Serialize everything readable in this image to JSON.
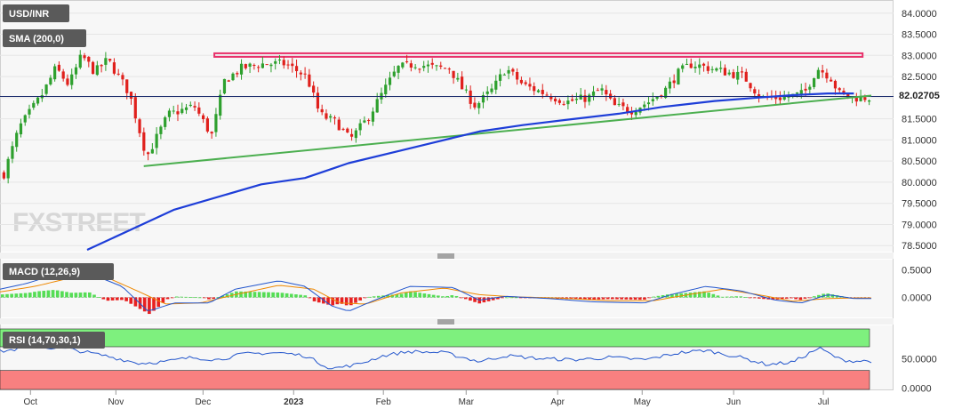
{
  "header": {
    "symbol": "USD/INR",
    "indicators": [
      "SMA (200,0)",
      "MACD (12,26,9)",
      "RSI (14,70,30,1)"
    ]
  },
  "watermark": {
    "prefix": "FX",
    "suffix": "STREET"
  },
  "colors": {
    "bull": "#2ea02e",
    "bear": "#e0201c",
    "sma": "#1e3ed8",
    "trendline": "#4caf50",
    "resistance": "#e8306a",
    "price_line": "#1a2a6c",
    "macd_line": "#2255cc",
    "signal_line": "#ee8800",
    "rsi_line": "#2255cc",
    "overbought_zone": "#7ef07e",
    "oversold_zone": "#f88080"
  },
  "x_axis": {
    "labels": [
      "Oct",
      "Nov",
      "Dec",
      "2023",
      "Feb",
      "Mar",
      "Apr",
      "May",
      "Jun",
      "Jul"
    ]
  },
  "chart_data": [
    {
      "type": "candlestick",
      "title": "USD/INR",
      "y_axis": {
        "labels": [
          "84.0000",
          "83.5000",
          "83.0000",
          "82.5000",
          "82.0000",
          "81.5000",
          "81.0000",
          "80.5000",
          "80.0000",
          "79.5000",
          "79.0000",
          "78.5000"
        ],
        "ylim": [
          78.4,
          84.1
        ]
      },
      "last_price": "82.02705",
      "price_anchors": [
        {
          "x": 0,
          "y": 80.2
        },
        {
          "x": 0.018,
          "y": 81.3
        },
        {
          "x": 0.045,
          "y": 82.1
        },
        {
          "x": 0.06,
          "y": 82.7
        },
        {
          "x": 0.075,
          "y": 82.3
        },
        {
          "x": 0.09,
          "y": 83.0
        },
        {
          "x": 0.105,
          "y": 82.6
        },
        {
          "x": 0.12,
          "y": 82.9
        },
        {
          "x": 0.145,
          "y": 82.1
        },
        {
          "x": 0.165,
          "y": 80.6
        },
        {
          "x": 0.19,
          "y": 81.6
        },
        {
          "x": 0.22,
          "y": 81.8
        },
        {
          "x": 0.24,
          "y": 81.1
        },
        {
          "x": 0.255,
          "y": 82.4
        },
        {
          "x": 0.275,
          "y": 82.7
        },
        {
          "x": 0.3,
          "y": 82.8
        },
        {
          "x": 0.325,
          "y": 82.8
        },
        {
          "x": 0.35,
          "y": 82.5
        },
        {
          "x": 0.365,
          "y": 81.6
        },
        {
          "x": 0.385,
          "y": 81.4
        },
        {
          "x": 0.4,
          "y": 81.0
        },
        {
          "x": 0.42,
          "y": 81.5
        },
        {
          "x": 0.44,
          "y": 82.2
        },
        {
          "x": 0.455,
          "y": 82.7
        },
        {
          "x": 0.475,
          "y": 82.8
        },
        {
          "x": 0.5,
          "y": 82.7
        },
        {
          "x": 0.515,
          "y": 82.7
        },
        {
          "x": 0.53,
          "y": 82.2
        },
        {
          "x": 0.545,
          "y": 81.8
        },
        {
          "x": 0.565,
          "y": 82.2
        },
        {
          "x": 0.58,
          "y": 82.7
        },
        {
          "x": 0.6,
          "y": 82.3
        },
        {
          "x": 0.625,
          "y": 82.1
        },
        {
          "x": 0.65,
          "y": 81.9
        },
        {
          "x": 0.675,
          "y": 82.0
        },
        {
          "x": 0.69,
          "y": 82.2
        },
        {
          "x": 0.705,
          "y": 81.8
        },
        {
          "x": 0.725,
          "y": 81.7
        },
        {
          "x": 0.745,
          "y": 81.9
        },
        {
          "x": 0.765,
          "y": 82.2
        },
        {
          "x": 0.78,
          "y": 82.6
        },
        {
          "x": 0.795,
          "y": 82.8
        },
        {
          "x": 0.815,
          "y": 82.7
        },
        {
          "x": 0.835,
          "y": 82.6
        },
        {
          "x": 0.855,
          "y": 82.5
        },
        {
          "x": 0.875,
          "y": 82.0
        },
        {
          "x": 0.9,
          "y": 82.0
        },
        {
          "x": 0.925,
          "y": 82.1
        },
        {
          "x": 0.94,
          "y": 82.7
        },
        {
          "x": 0.955,
          "y": 82.5
        },
        {
          "x": 0.965,
          "y": 82.1
        },
        {
          "x": 0.98,
          "y": 82.0
        }
      ],
      "sma_200": [
        {
          "x": 0.1,
          "y": 78.4
        },
        {
          "x": 0.2,
          "y": 79.35
        },
        {
          "x": 0.3,
          "y": 79.95
        },
        {
          "x": 0.35,
          "y": 80.1
        },
        {
          "x": 0.4,
          "y": 80.45
        },
        {
          "x": 0.46,
          "y": 80.75
        },
        {
          "x": 0.5,
          "y": 80.95
        },
        {
          "x": 0.55,
          "y": 81.2
        },
        {
          "x": 0.6,
          "y": 81.35
        },
        {
          "x": 0.66,
          "y": 81.5
        },
        {
          "x": 0.71,
          "y": 81.62
        },
        {
          "x": 0.76,
          "y": 81.78
        },
        {
          "x": 0.82,
          "y": 81.92
        },
        {
          "x": 0.87,
          "y": 82.0
        },
        {
          "x": 0.91,
          "y": 82.06
        },
        {
          "x": 0.95,
          "y": 82.1
        },
        {
          "x": 0.98,
          "y": 82.1
        }
      ],
      "trendline_support": [
        {
          "x": 0.165,
          "y": 80.38
        },
        {
          "x": 1.0,
          "y": 82.05
        }
      ],
      "resistance_zone": {
        "x_start": 0.246,
        "x_end": 0.99,
        "y_low": 82.98,
        "y_high": 83.05
      }
    },
    {
      "type": "macd",
      "title": "MACD (12,26,9)",
      "y_axis": {
        "labels": [
          "0.5000",
          "0.0000"
        ],
        "ylim": [
          -0.33,
          0.62
        ]
      },
      "macd_line_anchors": [
        {
          "x": 0,
          "y": 0.15
        },
        {
          "x": 0.03,
          "y": 0.25
        },
        {
          "x": 0.06,
          "y": 0.4
        },
        {
          "x": 0.1,
          "y": 0.45
        },
        {
          "x": 0.14,
          "y": 0.2
        },
        {
          "x": 0.17,
          "y": -0.25
        },
        {
          "x": 0.2,
          "y": -0.1
        },
        {
          "x": 0.24,
          "y": -0.1
        },
        {
          "x": 0.27,
          "y": 0.15
        },
        {
          "x": 0.32,
          "y": 0.3
        },
        {
          "x": 0.35,
          "y": 0.2
        },
        {
          "x": 0.38,
          "y": -0.15
        },
        {
          "x": 0.4,
          "y": -0.25
        },
        {
          "x": 0.43,
          "y": -0.05
        },
        {
          "x": 0.47,
          "y": 0.2
        },
        {
          "x": 0.52,
          "y": 0.18
        },
        {
          "x": 0.55,
          "y": -0.05
        },
        {
          "x": 0.58,
          "y": 0.02
        },
        {
          "x": 0.63,
          "y": -0.02
        },
        {
          "x": 0.68,
          "y": -0.08
        },
        {
          "x": 0.74,
          "y": -0.1
        },
        {
          "x": 0.77,
          "y": 0.05
        },
        {
          "x": 0.81,
          "y": 0.2
        },
        {
          "x": 0.85,
          "y": 0.12
        },
        {
          "x": 0.89,
          "y": -0.05
        },
        {
          "x": 0.92,
          "y": -0.1
        },
        {
          "x": 0.95,
          "y": 0.05
        },
        {
          "x": 0.98,
          "y": -0.02
        }
      ],
      "signal_line_anchors": [
        {
          "x": 0,
          "y": 0.1
        },
        {
          "x": 0.04,
          "y": 0.2
        },
        {
          "x": 0.08,
          "y": 0.35
        },
        {
          "x": 0.12,
          "y": 0.38
        },
        {
          "x": 0.16,
          "y": 0.1
        },
        {
          "x": 0.19,
          "y": -0.12
        },
        {
          "x": 0.23,
          "y": -0.1
        },
        {
          "x": 0.27,
          "y": 0.05
        },
        {
          "x": 0.32,
          "y": 0.22
        },
        {
          "x": 0.36,
          "y": 0.15
        },
        {
          "x": 0.39,
          "y": -0.1
        },
        {
          "x": 0.42,
          "y": -0.12
        },
        {
          "x": 0.46,
          "y": 0.08
        },
        {
          "x": 0.51,
          "y": 0.17
        },
        {
          "x": 0.55,
          "y": 0.05
        },
        {
          "x": 0.59,
          "y": 0.01
        },
        {
          "x": 0.64,
          "y": -0.01
        },
        {
          "x": 0.7,
          "y": -0.06
        },
        {
          "x": 0.75,
          "y": -0.06
        },
        {
          "x": 0.79,
          "y": 0.05
        },
        {
          "x": 0.83,
          "y": 0.15
        },
        {
          "x": 0.87,
          "y": 0.05
        },
        {
          "x": 0.91,
          "y": -0.07
        },
        {
          "x": 0.95,
          "y": -0.02
        },
        {
          "x": 0.98,
          "y": -0.01
        }
      ]
    },
    {
      "type": "rsi",
      "title": "RSI (14,70,30,1)",
      "y_axis": {
        "labels": [
          "50.0000",
          "0.0000"
        ],
        "ylim": [
          -2,
          100
        ]
      },
      "overbought_level": 70,
      "oversold_level": 30,
      "rsi_anchors": [
        {
          "x": 0,
          "y": 62
        },
        {
          "x": 0.04,
          "y": 70
        },
        {
          "x": 0.08,
          "y": 66
        },
        {
          "x": 0.12,
          "y": 55
        },
        {
          "x": 0.16,
          "y": 42
        },
        {
          "x": 0.19,
          "y": 45
        },
        {
          "x": 0.22,
          "y": 52
        },
        {
          "x": 0.25,
          "y": 48
        },
        {
          "x": 0.28,
          "y": 58
        },
        {
          "x": 0.32,
          "y": 60
        },
        {
          "x": 0.35,
          "y": 55
        },
        {
          "x": 0.38,
          "y": 33
        },
        {
          "x": 0.41,
          "y": 40
        },
        {
          "x": 0.44,
          "y": 55
        },
        {
          "x": 0.47,
          "y": 62
        },
        {
          "x": 0.51,
          "y": 60
        },
        {
          "x": 0.55,
          "y": 45
        },
        {
          "x": 0.58,
          "y": 55
        },
        {
          "x": 0.62,
          "y": 50
        },
        {
          "x": 0.66,
          "y": 48
        },
        {
          "x": 0.7,
          "y": 52
        },
        {
          "x": 0.74,
          "y": 48
        },
        {
          "x": 0.78,
          "y": 60
        },
        {
          "x": 0.81,
          "y": 64
        },
        {
          "x": 0.85,
          "y": 52
        },
        {
          "x": 0.88,
          "y": 40
        },
        {
          "x": 0.91,
          "y": 44
        },
        {
          "x": 0.94,
          "y": 68
        },
        {
          "x": 0.965,
          "y": 48
        },
        {
          "x": 0.98,
          "y": 46
        }
      ]
    }
  ]
}
